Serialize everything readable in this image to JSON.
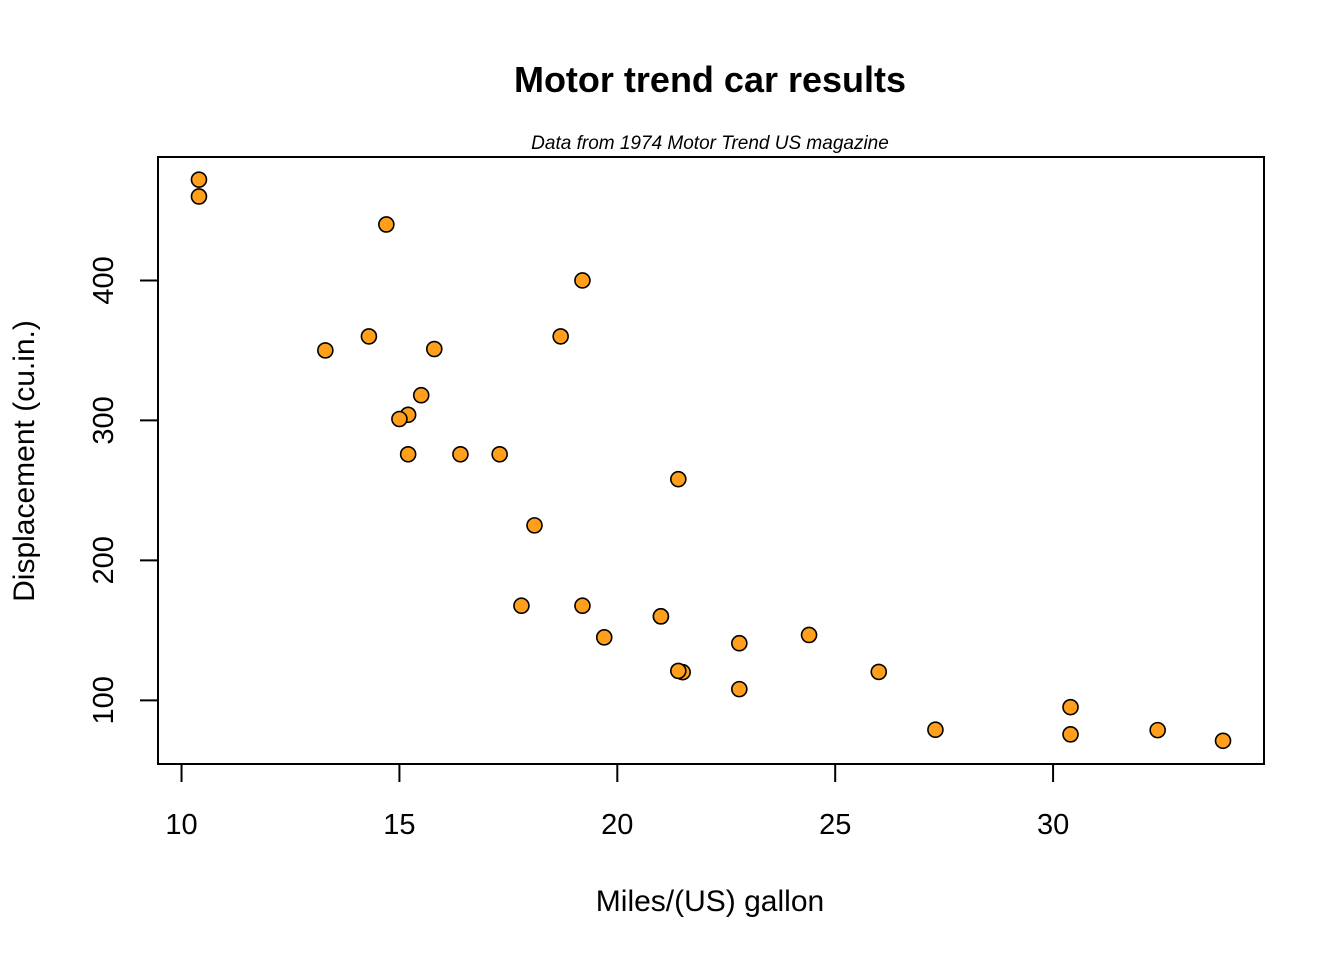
{
  "chart_data": {
    "type": "scatter",
    "title": "Motor trend car results",
    "subtitle": "Data from 1974 Motor Trend US magazine",
    "xlabel": "Miles/(US) gallon",
    "ylabel": "Displacement (cu.in.)",
    "xlim": [
      9.46,
      34.84
    ],
    "ylim": [
      54.5,
      488.2
    ],
    "x_ticks": [
      10,
      15,
      20,
      25,
      30
    ],
    "y_ticks": [
      100,
      200,
      300,
      400
    ],
    "grid": false,
    "legend": "none",
    "colors": {
      "point_fill": "#FF9F1C",
      "point_stroke": "#000000",
      "axis": "#000000"
    },
    "series": [
      {
        "x": [
          21.0,
          21.0,
          22.8,
          21.4,
          18.7,
          18.1,
          14.3,
          24.4,
          22.8,
          19.2,
          17.8,
          16.4,
          17.3,
          15.2,
          10.4,
          10.4,
          14.7,
          32.4,
          30.4,
          33.9,
          21.5,
          15.5,
          15.2,
          13.3,
          19.2,
          27.3,
          26.0,
          30.4,
          15.8,
          19.7,
          15.0,
          21.4
        ],
        "y": [
          160,
          160,
          108,
          258,
          360,
          225,
          360,
          146.7,
          140.8,
          167.6,
          167.6,
          275.8,
          275.8,
          275.8,
          472,
          460,
          440,
          78.7,
          75.7,
          71.1,
          120.1,
          318,
          304,
          350,
          400,
          79,
          120.3,
          95.1,
          351,
          145,
          301,
          121
        ]
      }
    ]
  }
}
